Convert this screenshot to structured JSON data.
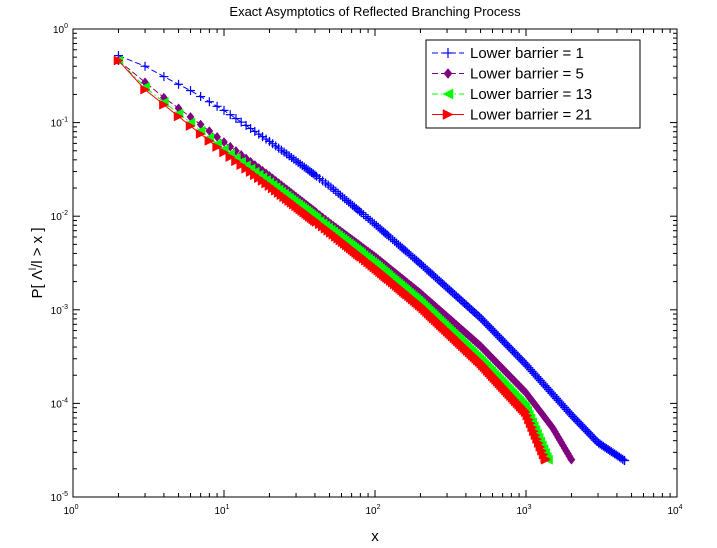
{
  "chart_data": {
    "type": "line",
    "title": "Exact Asymptotics of Reflected Branching Process",
    "xlabel": "x",
    "ylabel_parts": {
      "pre": "P[ Λ",
      "sup": "l",
      "post": "/l > x ]"
    },
    "xscale": "log",
    "yscale": "log",
    "xlim": [
      1,
      10000
    ],
    "ylim": [
      1e-05,
      1
    ],
    "x_ticks": [
      {
        "base": "10",
        "exp": "0"
      },
      {
        "base": "10",
        "exp": "1"
      },
      {
        "base": "10",
        "exp": "2"
      },
      {
        "base": "10",
        "exp": "3"
      },
      {
        "base": "10",
        "exp": "4"
      }
    ],
    "y_ticks": [
      {
        "base": "10",
        "exp": "-5"
      },
      {
        "base": "10",
        "exp": "-4"
      },
      {
        "base": "10",
        "exp": "-3"
      },
      {
        "base": "10",
        "exp": "-2"
      },
      {
        "base": "10",
        "exp": "-1"
      },
      {
        "base": "10",
        "exp": "0"
      }
    ],
    "grid": false,
    "legend_position": "top-right",
    "series": [
      {
        "name": "Lower barrier = 1",
        "color": "#0000ff",
        "marker": "plus",
        "line_style": "dashed",
        "points": [
          [
            2,
            0.52
          ],
          [
            3,
            0.4
          ],
          [
            4,
            0.31
          ],
          [
            6,
            0.22
          ],
          [
            10,
            0.135
          ],
          [
            20,
            0.063
          ],
          [
            30,
            0.039
          ],
          [
            50,
            0.021
          ],
          [
            100,
            0.0082
          ],
          [
            200,
            0.0031
          ],
          [
            500,
            0.00082
          ],
          [
            1000,
            0.00026
          ],
          [
            2000,
            7.5e-05
          ],
          [
            3000,
            3.8e-05
          ],
          [
            4500,
            2.45e-05
          ]
        ]
      },
      {
        "name": "Lower barrier = 5",
        "color": "#800080",
        "marker": "diamond",
        "line_style": "dashed",
        "points": [
          [
            2,
            0.46
          ],
          [
            3,
            0.27
          ],
          [
            4,
            0.185
          ],
          [
            6,
            0.115
          ],
          [
            10,
            0.062
          ],
          [
            20,
            0.027
          ],
          [
            50,
            0.0085
          ],
          [
            100,
            0.0037
          ],
          [
            200,
            0.0015
          ],
          [
            500,
            0.00041
          ],
          [
            1000,
            0.00013
          ],
          [
            1500,
            5.5e-05
          ],
          [
            2000,
            2.5e-05
          ]
        ]
      },
      {
        "name": "Lower barrier = 13",
        "color": "#00ff00",
        "marker": "triangle-left",
        "line_style": "dash-dot",
        "points": [
          [
            2,
            0.46
          ],
          [
            3,
            0.24
          ],
          [
            4,
            0.165
          ],
          [
            6,
            0.1
          ],
          [
            10,
            0.052
          ],
          [
            20,
            0.023
          ],
          [
            50,
            0.0074
          ],
          [
            100,
            0.0031
          ],
          [
            200,
            0.0012
          ],
          [
            500,
            0.00029
          ],
          [
            1000,
            9e-05
          ],
          [
            1400,
            2.5e-05
          ]
        ]
      },
      {
        "name": "Lower barrier = 21",
        "color": "#ff0000",
        "marker": "triangle-right",
        "line_style": "solid",
        "points": [
          [
            2,
            0.46
          ],
          [
            3,
            0.225
          ],
          [
            4,
            0.155
          ],
          [
            6,
            0.092
          ],
          [
            10,
            0.048
          ],
          [
            20,
            0.021
          ],
          [
            50,
            0.0068
          ],
          [
            100,
            0.0028
          ],
          [
            200,
            0.0011
          ],
          [
            500,
            0.00027
          ],
          [
            1000,
            8e-05
          ],
          [
            1350,
            2.5e-05
          ]
        ]
      }
    ]
  }
}
